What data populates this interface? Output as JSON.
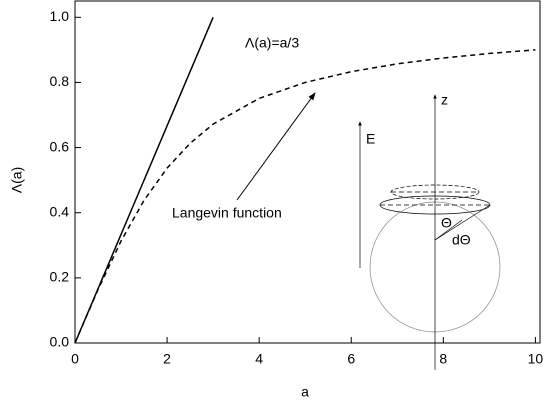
{
  "chart_data": {
    "type": "line",
    "x_label": "a",
    "y_label": "Λ(a)",
    "series": [
      {
        "name": "Λ(a)=a/3",
        "color": "#000000",
        "dash": "solid",
        "x": [
          0,
          3
        ],
        "values": [
          0,
          1
        ]
      },
      {
        "name": "Langevin function",
        "color": "#000000",
        "dash": "dashed",
        "x": [
          0,
          0.5,
          1,
          1.5,
          2,
          2.5,
          3,
          4,
          5,
          6,
          7,
          8,
          9,
          10
        ],
        "values": [
          0,
          0.164,
          0.313,
          0.438,
          0.537,
          0.613,
          0.672,
          0.751,
          0.8,
          0.833,
          0.857,
          0.875,
          0.889,
          0.9
        ]
      }
    ],
    "xlim": [
      0,
      10.1
    ],
    "ylim": [
      0,
      1.05
    ],
    "xticks": [
      0,
      2,
      4,
      6,
      8,
      10
    ],
    "yticks": [
      {
        "value": 0,
        "label": "0.0"
      },
      0.2,
      0.4,
      0.6,
      0.8,
      {
        "value": 1,
        "label": "1.0"
      }
    ],
    "grid": false,
    "inset_labels": [
      "E",
      "z",
      "Θ",
      "dΘ"
    ]
  }
}
